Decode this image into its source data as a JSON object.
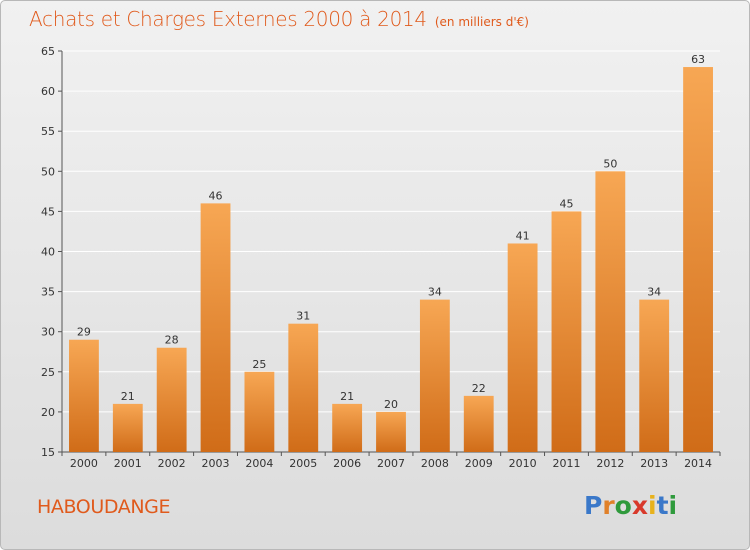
{
  "header": {
    "title": "Achats et Charges Externes 2000 à 2014",
    "unit": "(en milliers d'€)"
  },
  "footer": {
    "commune": "HABOUDANGE",
    "logo_text": "Proxiti"
  },
  "colors": {
    "bar_top": "#f7a754",
    "bar_bottom": "#d06c18",
    "title": "#e05a1c",
    "grid": "#ffffff"
  },
  "chart_data": {
    "type": "bar",
    "title": "Achats et Charges Externes 2000 à 2014",
    "subtitle": "(en milliers d'€)",
    "xlabel": "",
    "ylabel": "",
    "categories": [
      "2000",
      "2001",
      "2002",
      "2003",
      "2004",
      "2005",
      "2006",
      "2007",
      "2008",
      "2009",
      "2010",
      "2011",
      "2012",
      "2013",
      "2014"
    ],
    "values": [
      29,
      21,
      28,
      46,
      25,
      31,
      21,
      20,
      34,
      22,
      41,
      45,
      50,
      34,
      63
    ],
    "ylim": [
      15,
      65
    ],
    "yticks": [
      15,
      20,
      25,
      30,
      35,
      40,
      45,
      50,
      55,
      60,
      65
    ],
    "grid": true,
    "legend": "none"
  }
}
